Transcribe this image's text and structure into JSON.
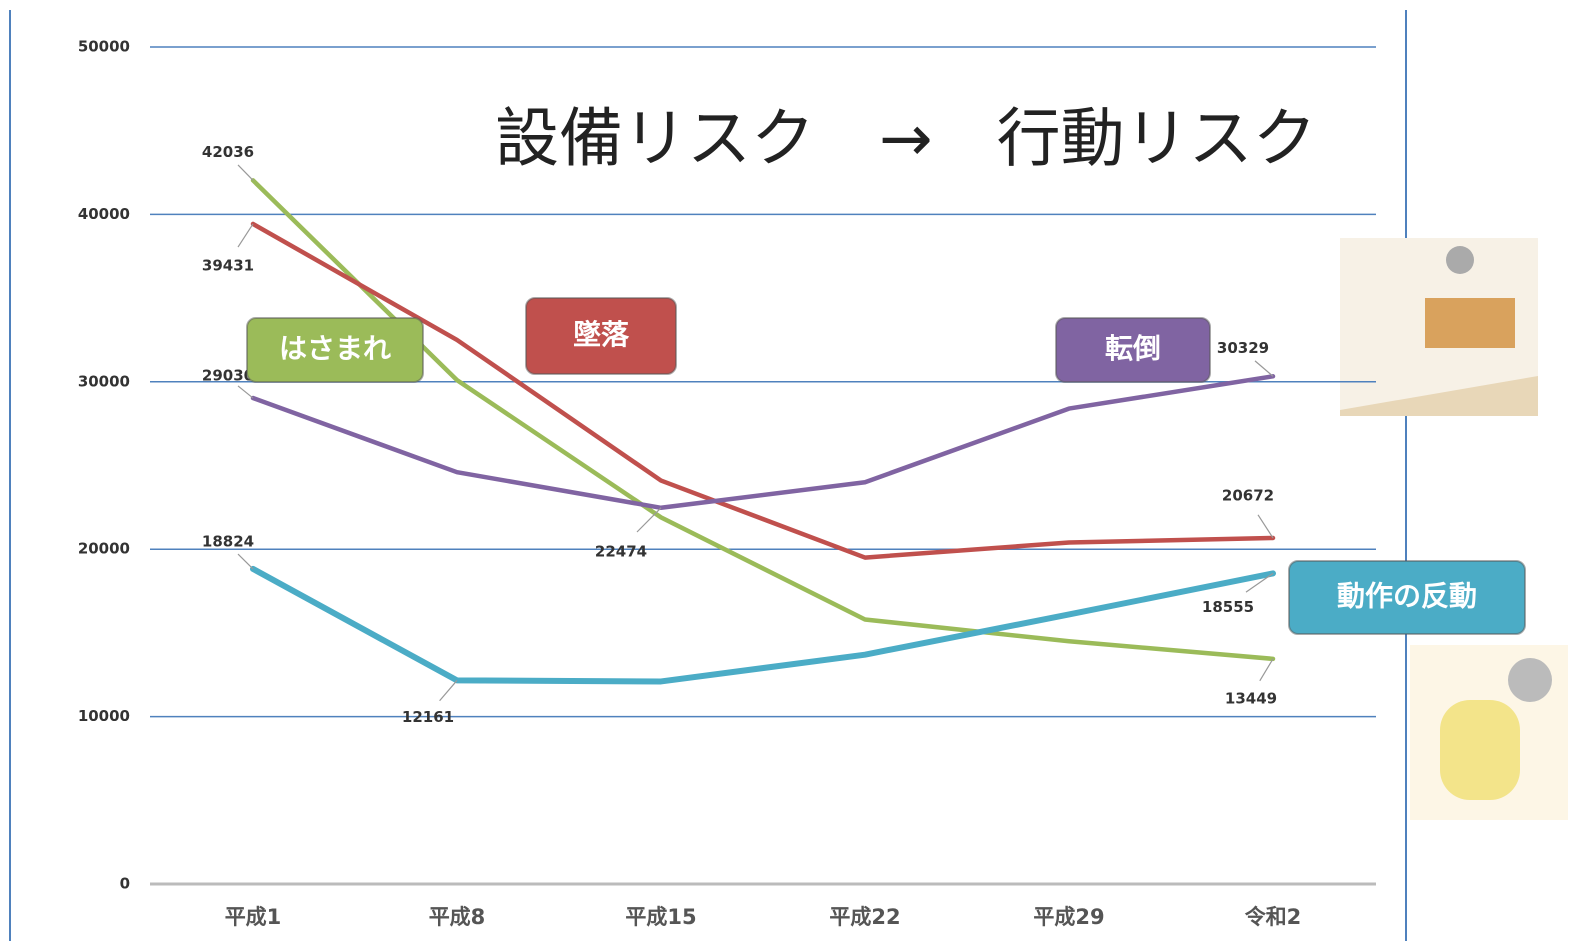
{
  "chart_data": {
    "type": "line",
    "title": "設備リスク　→　行動リスク",
    "categories": [
      "平成1",
      "平成8",
      "平成15",
      "平成22",
      "平成29",
      "令和2"
    ],
    "ylim": [
      0,
      50000
    ],
    "yticks": [
      0,
      10000,
      20000,
      30000,
      40000,
      50000
    ],
    "grid": true,
    "series": [
      {
        "name": "はさまれ",
        "color": "#9bbb59",
        "values": [
          42036,
          30100,
          21900,
          15800,
          14500,
          13449
        ]
      },
      {
        "name": "墜落",
        "color": "#c0504d",
        "values": [
          39431,
          32500,
          24100,
          19500,
          20400,
          20672
        ]
      },
      {
        "name": "転倒",
        "color": "#8064a2",
        "values": [
          29030,
          24600,
          22474,
          24000,
          28400,
          30329
        ]
      },
      {
        "name": "動作の反動",
        "color": "#4bacc6",
        "values": [
          18824,
          12161,
          12100,
          13700,
          16100,
          18555
        ]
      }
    ]
  }
}
